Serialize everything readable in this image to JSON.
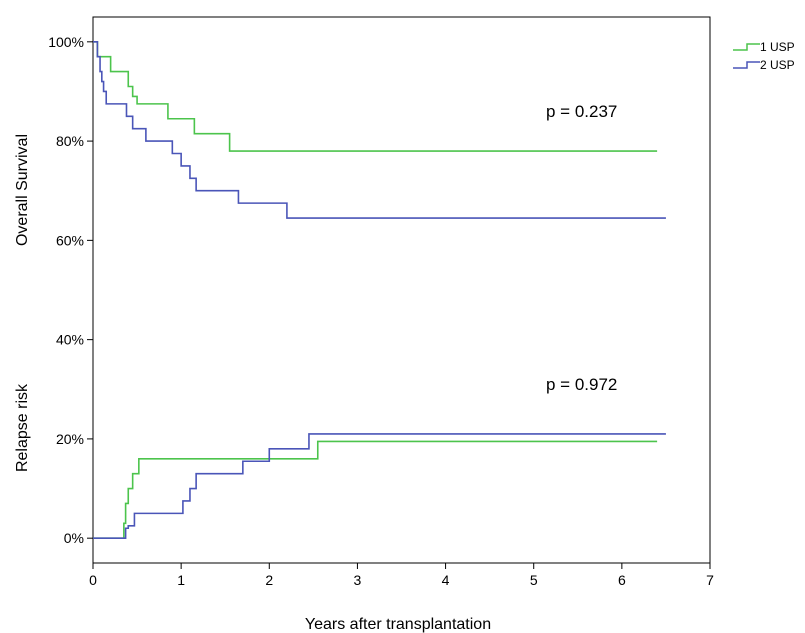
{
  "chart_data": {
    "type": "line",
    "step": true,
    "xlabel": "Years after transplantation",
    "ylabels": [
      "Overall Survival",
      "Relapse risk"
    ],
    "xlim": [
      0,
      7
    ],
    "ylim": [
      -0.05,
      1.05
    ],
    "x_ticks": [
      0,
      1,
      2,
      3,
      4,
      5,
      6,
      7
    ],
    "x_tick_labels": [
      "0",
      "1",
      "2",
      "3",
      "4",
      "5",
      "6",
      "7"
    ],
    "y_ticks": [
      0,
      0.2,
      0.4,
      0.6,
      0.8,
      1.0
    ],
    "y_tick_labels": [
      "0%",
      "20%",
      "40%",
      "60%",
      "80%",
      "100%"
    ],
    "legend": {
      "placement": "top-right outside",
      "entries": [
        {
          "name": "1 USP",
          "color": "#4cc44c"
        },
        {
          "name": "2 USP",
          "color": "#4a55b8"
        }
      ]
    },
    "annotations": [
      {
        "text": "p = 0.237",
        "x": 5.2,
        "y": 0.88
      },
      {
        "text": "p = 0.972",
        "x": 5.2,
        "y": 0.3
      }
    ],
    "series": [
      {
        "name": "1 USP",
        "group": "overall_survival",
        "color": "#4cc44c",
        "x": [
          0,
          0.05,
          0.2,
          0.4,
          0.45,
          0.5,
          0.85,
          1.15,
          1.55,
          6.4
        ],
        "y": [
          1.0,
          0.97,
          0.94,
          0.91,
          0.89,
          0.875,
          0.845,
          0.815,
          0.78,
          0.78
        ]
      },
      {
        "name": "2 USP",
        "group": "overall_survival",
        "color": "#4a55b8",
        "x": [
          0,
          0.05,
          0.08,
          0.1,
          0.12,
          0.15,
          0.38,
          0.45,
          0.6,
          0.9,
          1.0,
          1.1,
          1.17,
          1.22,
          1.65,
          2.2,
          6.5
        ],
        "y": [
          1.0,
          0.97,
          0.94,
          0.92,
          0.9,
          0.875,
          0.85,
          0.825,
          0.8,
          0.775,
          0.75,
          0.725,
          0.7,
          0.7,
          0.675,
          0.645,
          0.645
        ]
      },
      {
        "name": "1 USP",
        "group": "relapse_risk",
        "color": "#4cc44c",
        "x": [
          0,
          0.35,
          0.37,
          0.4,
          0.45,
          0.52,
          2.55,
          6.4
        ],
        "y": [
          0,
          0.03,
          0.07,
          0.1,
          0.13,
          0.16,
          0.195,
          0.195
        ]
      },
      {
        "name": "2 USP",
        "group": "relapse_risk",
        "color": "#4a55b8",
        "x": [
          0,
          0.37,
          0.4,
          0.47,
          1.02,
          1.1,
          1.17,
          1.7,
          2.0,
          2.45,
          6.5
        ],
        "y": [
          0,
          0.02,
          0.025,
          0.05,
          0.075,
          0.1,
          0.13,
          0.155,
          0.18,
          0.21,
          0.21
        ]
      }
    ]
  }
}
